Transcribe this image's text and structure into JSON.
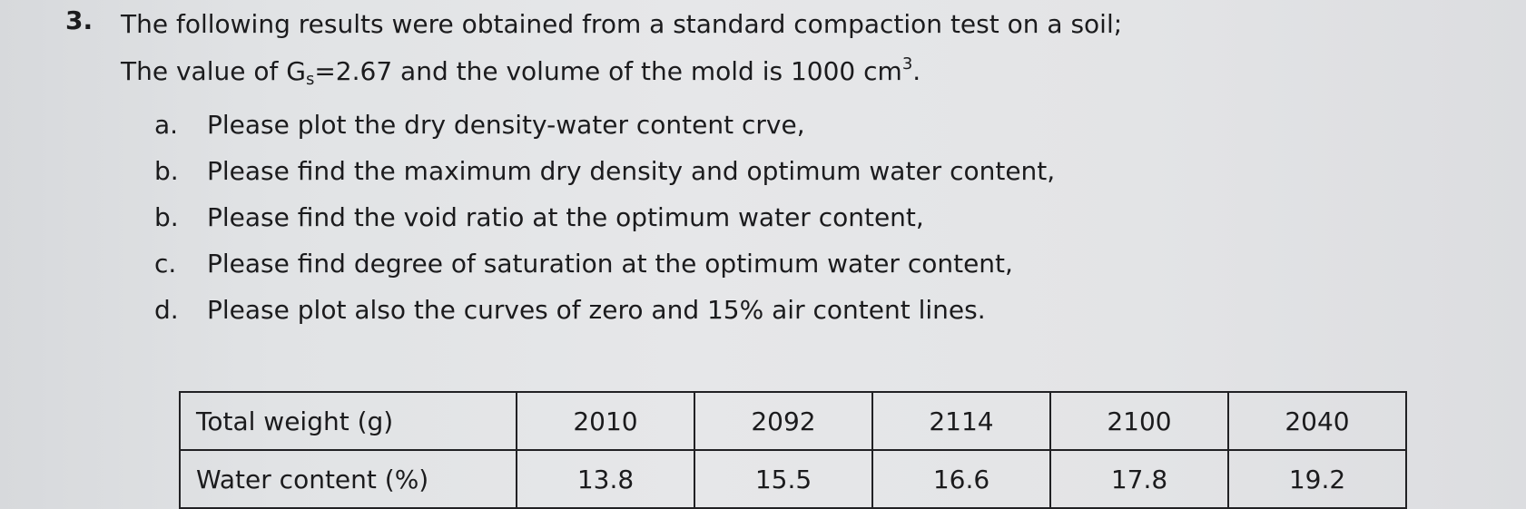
{
  "question": {
    "number": "3.",
    "line1": "The following results were obtained from a standard compaction test on a soil;",
    "line2_prefix": "The value of G",
    "line2_subscript": "s",
    "line2_middle": "=2.67 and the volume of the mold is 1000 cm",
    "line2_superscript": "3",
    "line2_end": "."
  },
  "parts": [
    {
      "marker": "a.",
      "text": "Please plot the dry density-water content crve,"
    },
    {
      "marker": "b.",
      "text": "Please find the maximum dry density and optimum water content,"
    },
    {
      "marker": "b.",
      "text": "Please find the void ratio at the optimum water content,"
    },
    {
      "marker": "c.",
      "text": "Please find degree of saturation at the optimum water content,"
    },
    {
      "marker": "d.",
      "text": "Please plot also the curves of zero and 15% air content lines."
    }
  ],
  "table": {
    "rows": [
      {
        "label": "Total weight (g)",
        "values": [
          "2010",
          "2092",
          "2114",
          "2100",
          "2040"
        ]
      },
      {
        "label": "Water content (%)",
        "values": [
          "13.8",
          "15.5",
          "16.6",
          "17.8",
          "19.2"
        ]
      }
    ]
  }
}
